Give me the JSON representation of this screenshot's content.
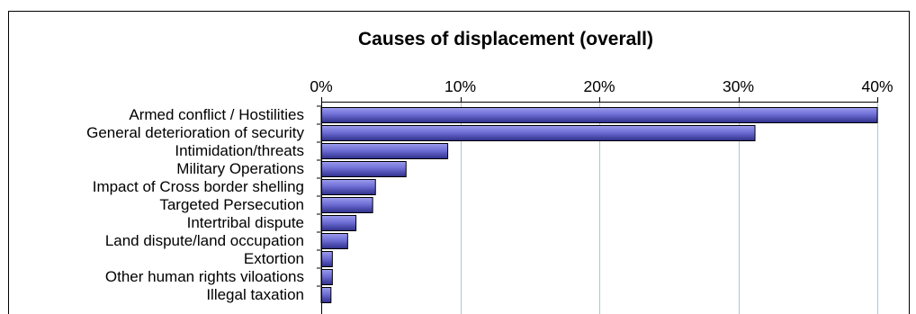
{
  "chart_data": {
    "type": "bar",
    "orientation": "horizontal",
    "title": "Causes of displacement (overall)",
    "xlabel": "",
    "ylabel": "",
    "xlim": [
      0,
      40
    ],
    "x_ticks": [
      "0%",
      "10%",
      "20%",
      "30%",
      "40%"
    ],
    "x_tick_values": [
      0,
      10,
      20,
      30,
      40
    ],
    "x_axis_position": "top",
    "grid": "vertical",
    "legend": "none",
    "categories": [
      "Armed conflict / Hostilities",
      "General deterioration of security",
      "Intimidation/threats",
      "Military Operations",
      "Impact of Cross border shelling",
      "Targeted Persecution",
      "Intertribal dispute",
      "Land dispute/land occupation",
      "Extortion",
      "Other human rights viloations",
      "Illegal taxation"
    ],
    "values": [
      40.0,
      31.2,
      9.1,
      6.1,
      3.9,
      3.7,
      2.5,
      1.9,
      0.8,
      0.8,
      0.7
    ],
    "value_unit": "%",
    "colors": {
      "bar_fill": "#6b6bd0",
      "bar_stroke": "#000000",
      "grid": "#a8c8d8",
      "axis": "#000000",
      "frame": "#000000"
    }
  }
}
